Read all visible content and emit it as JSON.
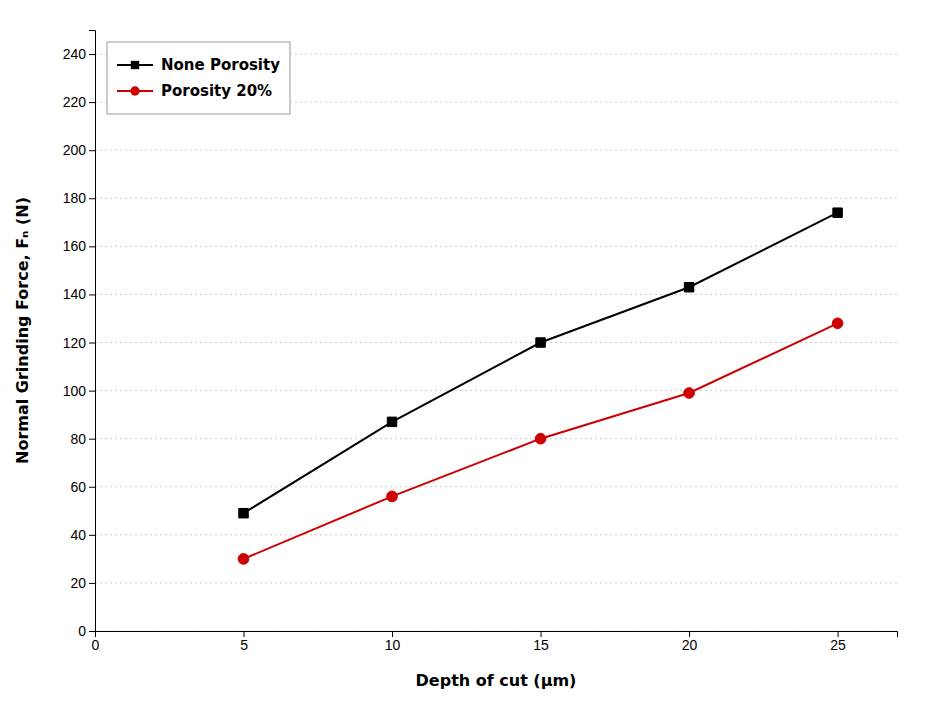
{
  "chart_data": {
    "type": "line",
    "xlabel": "Depth of cut (μm)",
    "ylabel": "Normal Grinding Force, Fₙ (N)",
    "x": [
      5,
      10,
      15,
      20,
      25
    ],
    "series": [
      {
        "name": "None Porosity",
        "color": "#000000",
        "marker": "square",
        "values": [
          49,
          87,
          120,
          143,
          174
        ]
      },
      {
        "name": "Porosity 20%",
        "color": "#cc0000",
        "marker": "circle",
        "values": [
          30,
          56,
          80,
          99,
          128
        ]
      }
    ],
    "xlim": [
      0,
      27
    ],
    "ylim": [
      0,
      250
    ],
    "xticks": [
      0,
      5,
      10,
      15,
      20,
      25
    ],
    "yticks": [
      0,
      20,
      40,
      60,
      80,
      100,
      120,
      140,
      160,
      180,
      200,
      220,
      240
    ],
    "grid": "y",
    "legend": "upper left"
  }
}
